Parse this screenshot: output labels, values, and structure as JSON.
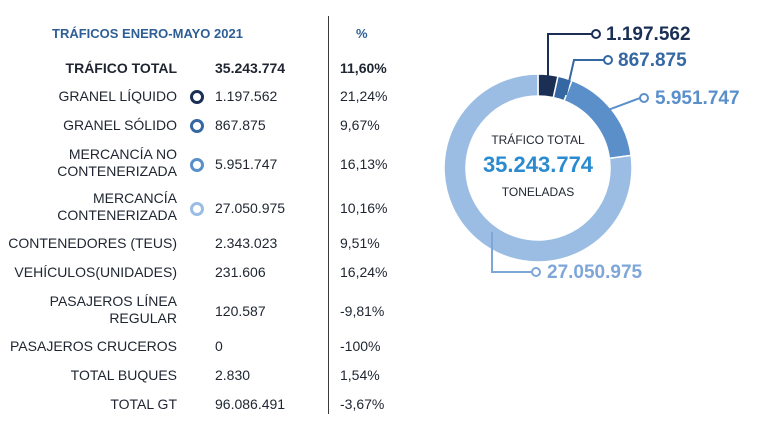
{
  "header": {
    "title": "TRÁFICOS ENERO-MAYO 2021",
    "pct": "%"
  },
  "rows": [
    {
      "label": "TRÁFICO TOTAL",
      "value": "35.243.774",
      "pct": "11,60%"
    },
    {
      "label": "GRANEL LÍQUIDO",
      "value": "1.197.562",
      "pct": "21,24%"
    },
    {
      "label": "GRANEL SÓLIDO",
      "value": "867.875",
      "pct": "9,67%"
    },
    {
      "label": "MERCANCÍA NO",
      "label2": "CONTENERIZADA",
      "value": "5.951.747",
      "pct": "16,13%"
    },
    {
      "label": "MERCANCÍA",
      "label2": "CONTENERIZADA",
      "value": "27.050.975",
      "pct": "10,16%"
    },
    {
      "label": "CONTENEDORES (TEUS)",
      "value": "2.343.023",
      "pct": "9,51%"
    },
    {
      "label": "VEHÍCULOS(UNIDADES)",
      "value": "231.606",
      "pct": "16,24%"
    },
    {
      "label": "PASAJEROS LÍNEA",
      "label2": "REGULAR",
      "value": "120.587",
      "pct": "-9,81%"
    },
    {
      "label": "PASAJEROS CRUCEROS",
      "value": "0",
      "pct": "-100%"
    },
    {
      "label": "TOTAL BUQUES",
      "value": "2.830",
      "pct": "1,54%"
    },
    {
      "label": "TOTAL GT",
      "value": "96.086.491",
      "pct": "-3,67%"
    }
  ],
  "colors": {
    "granel_liquido": "#1b2f55",
    "granel_solido": "#3567a3",
    "mercancia_no_contenerizada": "#5b8fca",
    "mercancia_contenerizada": "#9bbde3"
  },
  "chart_data": {
    "type": "pie",
    "donut": true,
    "center": {
      "line1": "TRÁFICO TOTAL",
      "value": "35.243.774",
      "line2": "TONELADAS"
    },
    "categories": [
      "GRANEL LÍQUIDO",
      "GRANEL SÓLIDO",
      "MERCANCÍA NO CONTENERIZADA",
      "MERCANCÍA CONTENERIZADA"
    ],
    "values": [
      1197562,
      867875,
      5951747,
      27050975
    ],
    "labels": [
      "1.197.562",
      "867.875",
      "5.951.747",
      "27.050.975"
    ],
    "colors": [
      "#1b2f55",
      "#3567a3",
      "#5b8fca",
      "#9bbde3"
    ],
    "label_colors": [
      "#1b2f55",
      "#3567a3",
      "#5b8fca",
      "#7fa6d8"
    ]
  }
}
